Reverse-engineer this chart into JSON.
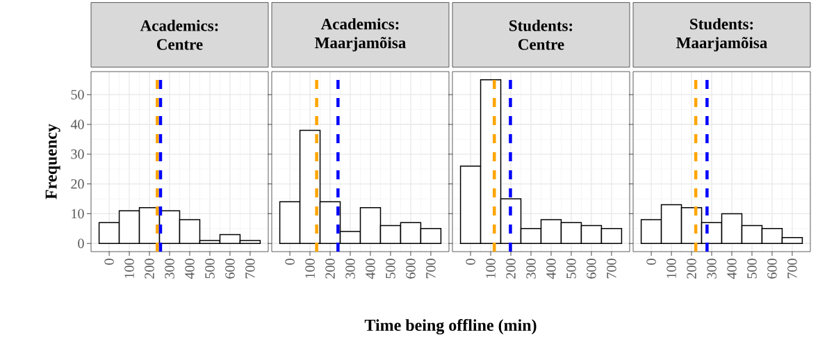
{
  "chart_data": [
    {
      "type": "histogram",
      "title": "Academics: Centre",
      "xlabel": "Time being offline (min)",
      "ylabel": "Frequency",
      "color": "#ffffff",
      "bins": [
        -50,
        50,
        150,
        250,
        350,
        450,
        550,
        650,
        750
      ],
      "values": [
        7,
        11,
        12,
        11,
        8,
        1,
        3,
        1
      ],
      "xlim": [
        -90,
        790
      ],
      "ylim": [
        -2.75,
        57.75
      ],
      "xticks": [
        0,
        100,
        200,
        300,
        400,
        500,
        600,
        700
      ],
      "yticks": [
        0,
        10,
        20,
        30,
        40,
        50
      ],
      "grid": true,
      "ref_lines": [
        {
          "axis": "x",
          "value": 239,
          "color": "#ffa500",
          "line_style": "dashed"
        },
        {
          "axis": "x",
          "value": 255,
          "color": "#0000ff",
          "line_style": "dashed"
        }
      ]
    },
    {
      "type": "histogram",
      "title": "Academics: Maarjamõisa",
      "color": "#ffffff",
      "bins": [
        -50,
        50,
        150,
        250,
        350,
        450,
        550,
        650,
        750
      ],
      "values": [
        14,
        38,
        14,
        4,
        12,
        6,
        7,
        5
      ],
      "xlim": [
        -90,
        790
      ],
      "ylim": [
        -2.75,
        57.75
      ],
      "xticks": [
        0,
        100,
        200,
        300,
        400,
        500,
        600,
        700
      ],
      "yticks": [
        0,
        10,
        20,
        30,
        40,
        50
      ],
      "grid": true,
      "tick_labels": "x",
      "ref_lines": [
        {
          "axis": "x",
          "value": 133,
          "color": "#ffa500",
          "line_style": "dashed"
        },
        {
          "axis": "x",
          "value": 239,
          "color": "#0000ff",
          "line_style": "dashed"
        }
      ]
    },
    {
      "type": "histogram",
      "title": "Students: Centre",
      "color": "#ffffff",
      "bins": [
        -50,
        50,
        150,
        250,
        350,
        450,
        550,
        650,
        750
      ],
      "values": [
        26,
        55,
        15,
        5,
        8,
        7,
        6,
        5
      ],
      "xlim": [
        -90,
        790
      ],
      "ylim": [
        -2.75,
        57.75
      ],
      "xticks": [
        0,
        100,
        200,
        300,
        400,
        500,
        600,
        700
      ],
      "yticks": [
        0,
        10,
        20,
        30,
        40,
        50
      ],
      "grid": true,
      "tick_labels": "x",
      "ref_lines": [
        {
          "axis": "x",
          "value": 118,
          "color": "#ffa500",
          "line_style": "dashed"
        },
        {
          "axis": "x",
          "value": 198,
          "color": "#0000ff",
          "line_style": "dashed"
        }
      ]
    },
    {
      "type": "histogram",
      "title": "Students: Maarjamõisa",
      "color": "#ffffff",
      "bins": [
        -50,
        50,
        150,
        250,
        350,
        450,
        550,
        650,
        750
      ],
      "values": [
        8,
        13,
        12,
        7,
        10,
        6,
        5,
        2
      ],
      "xlim": [
        -90,
        790
      ],
      "ylim": [
        -2.75,
        57.75
      ],
      "xticks": [
        0,
        100,
        200,
        300,
        400,
        500,
        600,
        700
      ],
      "yticks": [
        0,
        10,
        20,
        30,
        40,
        50
      ],
      "grid": true,
      "tick_labels": "x",
      "ref_lines": [
        {
          "axis": "x",
          "value": 221,
          "color": "#ffa500",
          "line_style": "dashed"
        },
        {
          "axis": "x",
          "value": 277,
          "color": "#0000ff",
          "line_style": "dashed"
        }
      ]
    }
  ]
}
